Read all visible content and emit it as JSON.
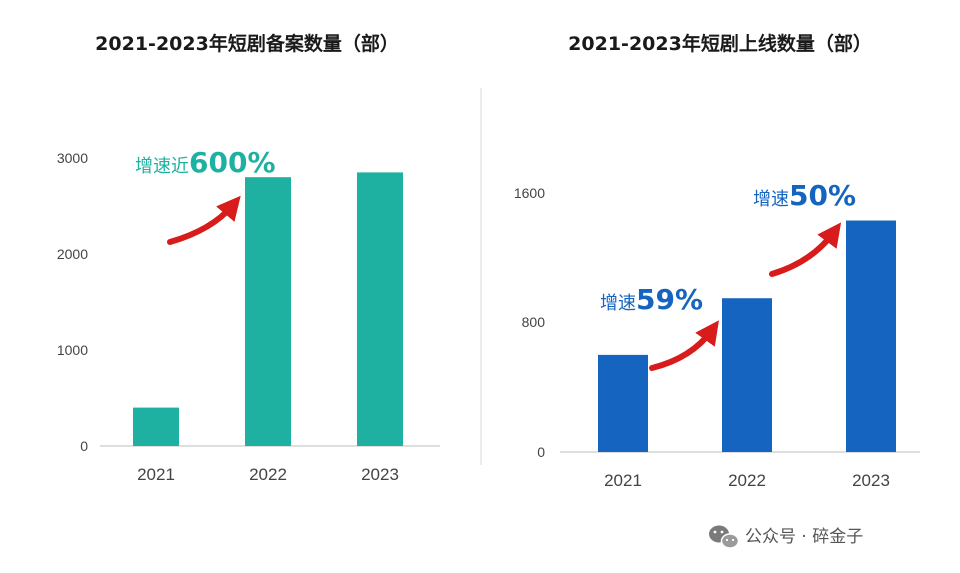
{
  "colors": {
    "teal": "#1eb1a2",
    "blue": "#1565c0",
    "arrow": "#d81b1b",
    "axis": "#bdbdbd",
    "divider": "#d9d9d9"
  },
  "chart_data": [
    {
      "type": "bar",
      "title": "2021-2023年短剧备案数量（部）",
      "categories": [
        "2021",
        "2022",
        "2023"
      ],
      "values": [
        400,
        2800,
        2850
      ],
      "yticks": [
        "0",
        "1000",
        "2000",
        "3000"
      ],
      "ylim": [
        0,
        3000
      ],
      "annotations": [
        {
          "label": "增速近",
          "value": "600%",
          "from_category": "2021",
          "to_category": "2022"
        }
      ]
    },
    {
      "type": "bar",
      "title": "2021-2023年短剧上线数量（部）",
      "categories": [
        "2021",
        "2022",
        "2023"
      ],
      "values": [
        600,
        950,
        1430
      ],
      "yticks": [
        "0",
        "800",
        "1600"
      ],
      "ylim": [
        0,
        1600
      ],
      "annotations": [
        {
          "label": "增速",
          "value": "59%",
          "from_category": "2021",
          "to_category": "2022"
        },
        {
          "label": "增速",
          "value": "50%",
          "from_category": "2022",
          "to_category": "2023"
        }
      ]
    }
  ],
  "watermark": {
    "icon": "wechat-icon",
    "text": "公众号 · 碎金子"
  }
}
